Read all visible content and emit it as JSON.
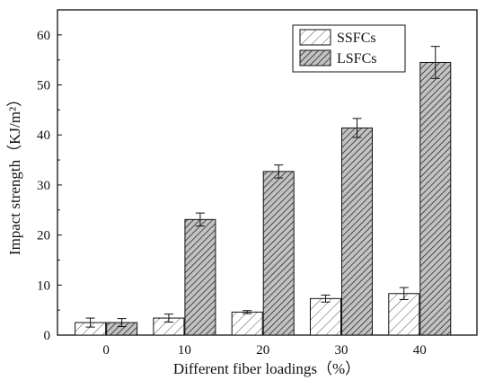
{
  "chart_data": {
    "type": "bar",
    "title": "",
    "xlabel": "Different fiber loadings（%）",
    "ylabel": "Impact strength（KJ/m²）",
    "categories": [
      "0",
      "10",
      "20",
      "30",
      "40"
    ],
    "ylim": [
      0,
      65
    ],
    "yticks": [
      "0",
      "10",
      "20",
      "30",
      "40",
      "50",
      "60"
    ],
    "grid": false,
    "legend_position": "top-right",
    "series": [
      {
        "name": "SSFCs",
        "values": [
          2.5,
          3.4,
          4.6,
          7.3,
          8.3
        ],
        "errors": [
          0.9,
          0.8,
          0.3,
          0.7,
          1.2
        ],
        "fill": "#ffffff"
      },
      {
        "name": "LSFCs",
        "values": [
          2.5,
          23.1,
          32.7,
          41.4,
          54.5
        ],
        "errors": [
          0.8,
          1.3,
          1.3,
          1.9,
          3.2
        ],
        "fill": "#b8b8b8"
      }
    ],
    "colors": {
      "stroke": "#111111",
      "hatch": "#222222",
      "background": "#ffffff"
    }
  }
}
